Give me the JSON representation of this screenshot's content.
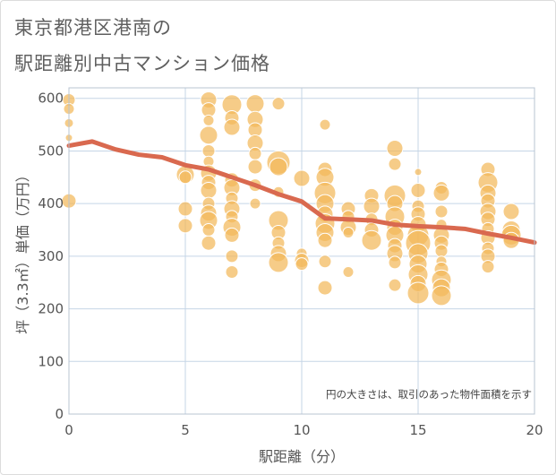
{
  "title_line1": "東京都港区港南の",
  "title_line2": "駅距離別中古マンション価格",
  "chart_data": {
    "type": "scatter",
    "title": "東京都港区港南の駅距離別中古マンション価格",
    "xlabel": "駅距離（分）",
    "ylabel": "坪（3.3㎡）単価（万円）",
    "xlim": [
      0,
      20
    ],
    "ylim": [
      0,
      620
    ],
    "xticks": [
      0,
      5,
      10,
      15,
      20
    ],
    "yticks": [
      0,
      100,
      200,
      300,
      400,
      500,
      600
    ],
    "annotation": "円の大きさは、取引のあった物件面積を示す",
    "colors": {
      "bubble": "#f2b85a",
      "trend": "#d9694f",
      "grid": "#c5d5e6"
    },
    "bubbles": [
      {
        "x": 0,
        "y": 597,
        "s": 7
      },
      {
        "x": 0,
        "y": 580,
        "s": 6
      },
      {
        "x": 0,
        "y": 553,
        "s": 5
      },
      {
        "x": 0,
        "y": 525,
        "s": 4
      },
      {
        "x": 0,
        "y": 405,
        "s": 8
      },
      {
        "x": 5,
        "y": 455,
        "s": 10
      },
      {
        "x": 5,
        "y": 450,
        "s": 7
      },
      {
        "x": 5,
        "y": 390,
        "s": 8
      },
      {
        "x": 5,
        "y": 358,
        "s": 8
      },
      {
        "x": 6,
        "y": 597,
        "s": 9
      },
      {
        "x": 6,
        "y": 578,
        "s": 8
      },
      {
        "x": 6,
        "y": 558,
        "s": 6
      },
      {
        "x": 6,
        "y": 530,
        "s": 10
      },
      {
        "x": 6,
        "y": 500,
        "s": 7
      },
      {
        "x": 6,
        "y": 480,
        "s": 6
      },
      {
        "x": 6,
        "y": 458,
        "s": 9
      },
      {
        "x": 6,
        "y": 440,
        "s": 8
      },
      {
        "x": 6,
        "y": 425,
        "s": 9
      },
      {
        "x": 6,
        "y": 400,
        "s": 7
      },
      {
        "x": 6,
        "y": 382,
        "s": 9
      },
      {
        "x": 6,
        "y": 368,
        "s": 10
      },
      {
        "x": 6,
        "y": 350,
        "s": 7
      },
      {
        "x": 6,
        "y": 325,
        "s": 8
      },
      {
        "x": 7,
        "y": 588,
        "s": 11
      },
      {
        "x": 7,
        "y": 563,
        "s": 8
      },
      {
        "x": 7,
        "y": 545,
        "s": 9
      },
      {
        "x": 7,
        "y": 445,
        "s": 8
      },
      {
        "x": 7,
        "y": 430,
        "s": 9
      },
      {
        "x": 7,
        "y": 410,
        "s": 7
      },
      {
        "x": 7,
        "y": 390,
        "s": 9
      },
      {
        "x": 7,
        "y": 375,
        "s": 7
      },
      {
        "x": 7,
        "y": 355,
        "s": 10
      },
      {
        "x": 7,
        "y": 340,
        "s": 8
      },
      {
        "x": 7,
        "y": 300,
        "s": 7
      },
      {
        "x": 7,
        "y": 270,
        "s": 7
      },
      {
        "x": 8,
        "y": 590,
        "s": 10
      },
      {
        "x": 8,
        "y": 560,
        "s": 9
      },
      {
        "x": 8,
        "y": 540,
        "s": 8
      },
      {
        "x": 8,
        "y": 515,
        "s": 9
      },
      {
        "x": 8,
        "y": 495,
        "s": 7
      },
      {
        "x": 8,
        "y": 470,
        "s": 8
      },
      {
        "x": 8,
        "y": 435,
        "s": 7
      },
      {
        "x": 8,
        "y": 400,
        "s": 6
      },
      {
        "x": 9,
        "y": 590,
        "s": 7
      },
      {
        "x": 9,
        "y": 478,
        "s": 13
      },
      {
        "x": 9,
        "y": 470,
        "s": 10
      },
      {
        "x": 9,
        "y": 422,
        "s": 6
      },
      {
        "x": 9,
        "y": 368,
        "s": 11
      },
      {
        "x": 9,
        "y": 345,
        "s": 8
      },
      {
        "x": 9,
        "y": 325,
        "s": 7
      },
      {
        "x": 9,
        "y": 305,
        "s": 9
      },
      {
        "x": 9,
        "y": 288,
        "s": 11
      },
      {
        "x": 10,
        "y": 448,
        "s": 9
      },
      {
        "x": 10,
        "y": 305,
        "s": 6
      },
      {
        "x": 10,
        "y": 292,
        "s": 8
      },
      {
        "x": 10,
        "y": 285,
        "s": 7
      },
      {
        "x": 11,
        "y": 550,
        "s": 6
      },
      {
        "x": 11,
        "y": 465,
        "s": 8
      },
      {
        "x": 11,
        "y": 450,
        "s": 10
      },
      {
        "x": 11,
        "y": 420,
        "s": 12
      },
      {
        "x": 11,
        "y": 400,
        "s": 10
      },
      {
        "x": 11,
        "y": 380,
        "s": 9
      },
      {
        "x": 11,
        "y": 362,
        "s": 11
      },
      {
        "x": 11,
        "y": 345,
        "s": 10
      },
      {
        "x": 11,
        "y": 330,
        "s": 8
      },
      {
        "x": 11,
        "y": 290,
        "s": 7
      },
      {
        "x": 11,
        "y": 240,
        "s": 8
      },
      {
        "x": 12,
        "y": 390,
        "s": 8
      },
      {
        "x": 12,
        "y": 375,
        "s": 7
      },
      {
        "x": 12,
        "y": 355,
        "s": 9
      },
      {
        "x": 12,
        "y": 345,
        "s": 6
      },
      {
        "x": 12,
        "y": 270,
        "s": 6
      },
      {
        "x": 13,
        "y": 415,
        "s": 8
      },
      {
        "x": 13,
        "y": 395,
        "s": 9
      },
      {
        "x": 13,
        "y": 370,
        "s": 7
      },
      {
        "x": 13,
        "y": 350,
        "s": 8
      },
      {
        "x": 13,
        "y": 330,
        "s": 11
      },
      {
        "x": 14,
        "y": 505,
        "s": 9
      },
      {
        "x": 14,
        "y": 475,
        "s": 7
      },
      {
        "x": 14,
        "y": 415,
        "s": 12
      },
      {
        "x": 14,
        "y": 400,
        "s": 9
      },
      {
        "x": 14,
        "y": 375,
        "s": 11
      },
      {
        "x": 14,
        "y": 355,
        "s": 9
      },
      {
        "x": 14,
        "y": 340,
        "s": 10
      },
      {
        "x": 14,
        "y": 320,
        "s": 8
      },
      {
        "x": 14,
        "y": 305,
        "s": 9
      },
      {
        "x": 14,
        "y": 288,
        "s": 7
      },
      {
        "x": 14,
        "y": 245,
        "s": 7
      },
      {
        "x": 15,
        "y": 460,
        "s": 4
      },
      {
        "x": 15,
        "y": 425,
        "s": 8
      },
      {
        "x": 15,
        "y": 395,
        "s": 7
      },
      {
        "x": 15,
        "y": 380,
        "s": 8
      },
      {
        "x": 15,
        "y": 360,
        "s": 9
      },
      {
        "x": 15,
        "y": 340,
        "s": 12
      },
      {
        "x": 15,
        "y": 325,
        "s": 14
      },
      {
        "x": 15,
        "y": 305,
        "s": 11
      },
      {
        "x": 15,
        "y": 285,
        "s": 10
      },
      {
        "x": 15,
        "y": 265,
        "s": 11
      },
      {
        "x": 15,
        "y": 248,
        "s": 9
      },
      {
        "x": 15,
        "y": 230,
        "s": 12
      },
      {
        "x": 16,
        "y": 430,
        "s": 7
      },
      {
        "x": 16,
        "y": 420,
        "s": 9
      },
      {
        "x": 16,
        "y": 385,
        "s": 7
      },
      {
        "x": 16,
        "y": 360,
        "s": 6
      },
      {
        "x": 16,
        "y": 340,
        "s": 9
      },
      {
        "x": 16,
        "y": 325,
        "s": 8
      },
      {
        "x": 16,
        "y": 310,
        "s": 7
      },
      {
        "x": 16,
        "y": 290,
        "s": 6
      },
      {
        "x": 16,
        "y": 275,
        "s": 8
      },
      {
        "x": 16,
        "y": 255,
        "s": 11
      },
      {
        "x": 16,
        "y": 240,
        "s": 10
      },
      {
        "x": 16,
        "y": 225,
        "s": 11
      },
      {
        "x": 18,
        "y": 465,
        "s": 8
      },
      {
        "x": 18,
        "y": 440,
        "s": 11
      },
      {
        "x": 18,
        "y": 420,
        "s": 9
      },
      {
        "x": 18,
        "y": 405,
        "s": 8
      },
      {
        "x": 18,
        "y": 385,
        "s": 9
      },
      {
        "x": 18,
        "y": 370,
        "s": 8
      },
      {
        "x": 18,
        "y": 352,
        "s": 7
      },
      {
        "x": 18,
        "y": 335,
        "s": 8
      },
      {
        "x": 18,
        "y": 315,
        "s": 7
      },
      {
        "x": 18,
        "y": 300,
        "s": 8
      },
      {
        "x": 18,
        "y": 280,
        "s": 7
      },
      {
        "x": 19,
        "y": 385,
        "s": 9
      },
      {
        "x": 19,
        "y": 350,
        "s": 10
      },
      {
        "x": 19,
        "y": 340,
        "s": 11
      },
      {
        "x": 19,
        "y": 330,
        "s": 9
      }
    ],
    "trend": {
      "x": [
        0,
        1,
        2,
        3,
        4,
        5,
        6,
        7,
        8,
        9,
        10,
        11,
        12,
        13,
        14,
        15,
        16,
        17,
        18,
        19,
        20
      ],
      "y": [
        510,
        518,
        503,
        493,
        488,
        473,
        465,
        450,
        435,
        418,
        404,
        372,
        370,
        368,
        360,
        357,
        355,
        352,
        343,
        335,
        326
      ]
    }
  }
}
